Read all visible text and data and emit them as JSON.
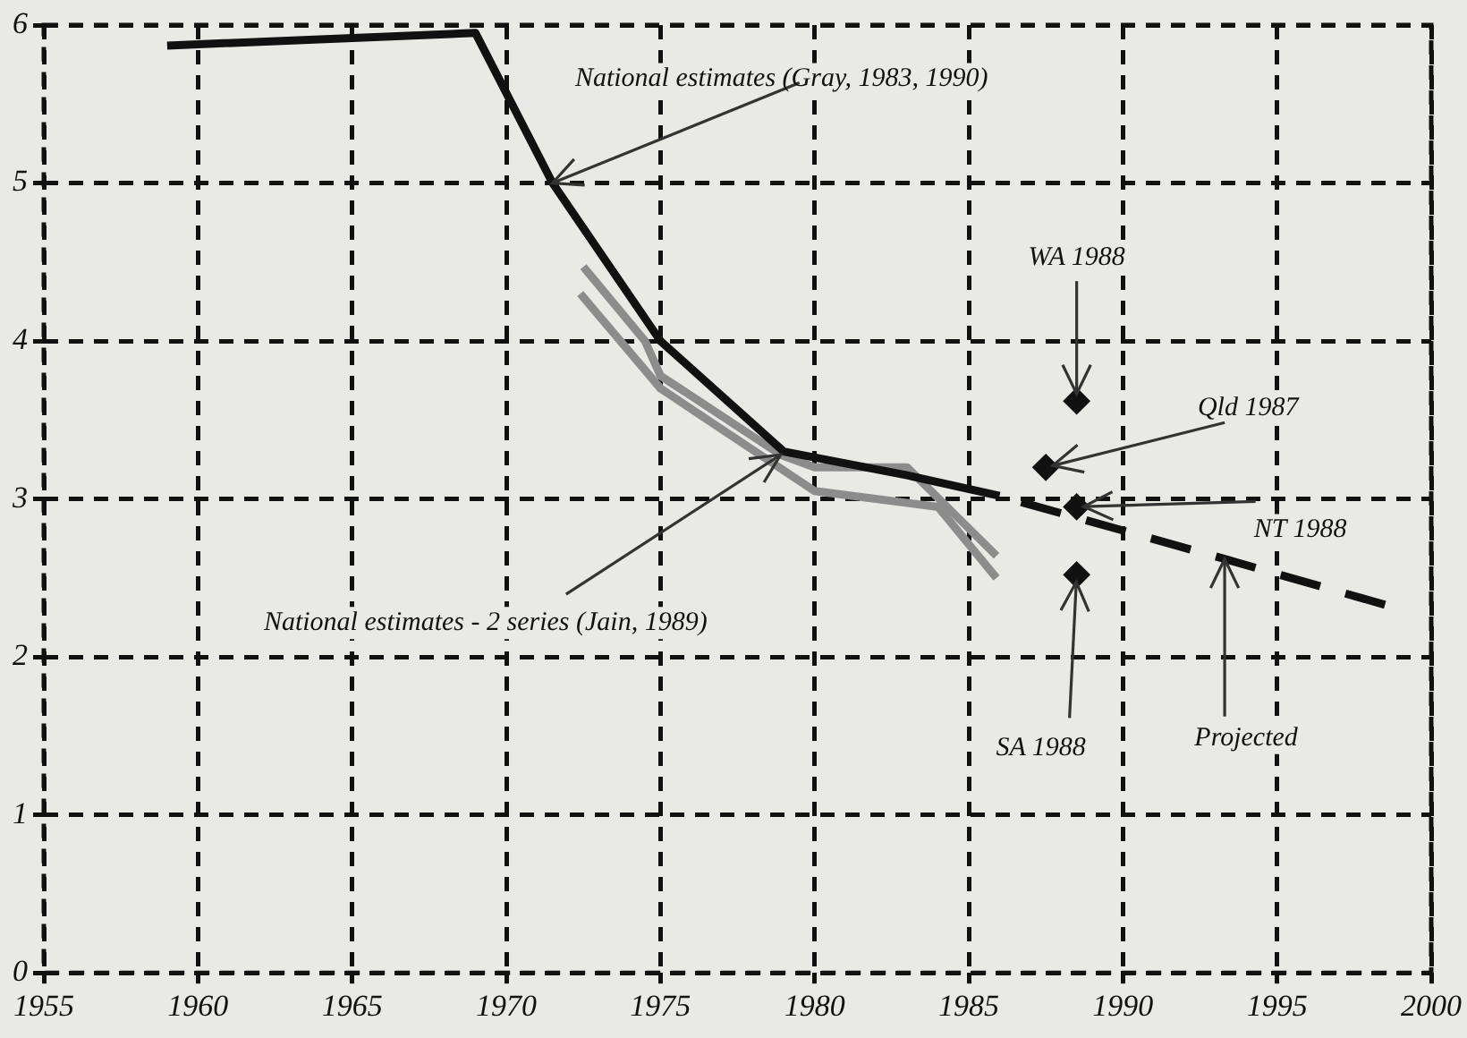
{
  "chart_data": {
    "type": "line",
    "xlim": [
      1955,
      2000
    ],
    "xticks": [
      1955,
      1960,
      1965,
      1970,
      1975,
      1980,
      1985,
      1990,
      1995,
      2000
    ],
    "ylim": [
      0,
      6
    ],
    "yticks": [
      0,
      1,
      2,
      3,
      4,
      5,
      6
    ],
    "grid": true,
    "legend": false,
    "series": [
      {
        "color": "#111111",
        "line_style": "solid",
        "x": [
          1959,
          1969,
          1971.5,
          1975,
          1979,
          1983,
          1986
        ],
        "values": [
          5.87,
          5.95,
          5.0,
          4.0,
          3.3,
          3.15,
          3.02
        ]
      },
      {
        "color": "#111111",
        "line_style": "dashed",
        "x": [
          1986.7,
          1993.3,
          1998.5
        ],
        "values": [
          2.98,
          2.62,
          2.33
        ]
      },
      {
        "color": "#8c8c8c",
        "line_style": "solid",
        "x": [
          1972.5,
          1974.5,
          1975,
          1978.9,
          1980,
          1983,
          1985.9
        ],
        "values": [
          4.47,
          4.0,
          3.78,
          3.28,
          3.2,
          3.2,
          2.64
        ]
      },
      {
        "color": "#8c8c8c",
        "line_style": "solid",
        "x": [
          1972.4,
          1975,
          1980,
          1984,
          1985.9
        ],
        "values": [
          4.3,
          3.7,
          3.05,
          2.95,
          2.5
        ]
      },
      {
        "type": "scatter",
        "color": "#111111",
        "marker": "diamond",
        "x": [
          1988.5,
          1987.5,
          1988.5,
          1988.5
        ],
        "values": [
          3.62,
          3.2,
          2.95,
          2.52
        ]
      }
    ],
    "annotations": [
      {
        "text": "National estimates (Gray, 1983, 1990)",
        "x": 1971.5,
        "y": 5.0
      },
      {
        "text": "National estimates - 2 series (Jain, 1989)",
        "x": 1978.9,
        "y": 3.28
      },
      {
        "text": "WA 1988",
        "x": 1988.5,
        "y": 3.62
      },
      {
        "text": "Qld 1987",
        "x": 1987.5,
        "y": 3.2
      },
      {
        "text": "NT 1988",
        "x": 1988.5,
        "y": 2.95
      },
      {
        "text": "SA 1988",
        "x": 1988.5,
        "y": 2.52
      },
      {
        "text": "Projected",
        "x": 1993.3,
        "y": 2.62
      }
    ]
  }
}
